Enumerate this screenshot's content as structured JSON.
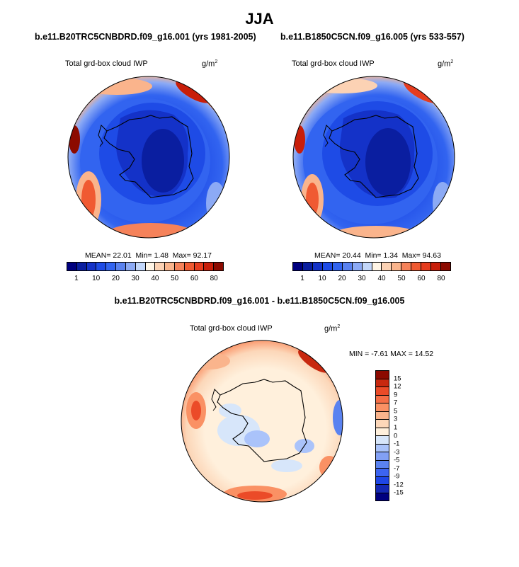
{
  "title": "JJA",
  "panels": [
    {
      "case": "b.e11.B20TRC5CNBDRD.f09_g16.001 (yrs 1981-2005)",
      "variable": "Total grd-box cloud IWP",
      "units_base": "g/m",
      "units_exp": "2",
      "stats": {
        "mean_label": "MEAN=",
        "mean": "22.01",
        "min_label": "Min=",
        "min": "1.48",
        "max_label": "Max=",
        "max": "92.17"
      }
    },
    {
      "case": "b.e11.B1850C5CN.f09_g16.005 (yrs 533-557)",
      "variable": "Total grd-box cloud IWP",
      "units_base": "g/m",
      "units_exp": "2",
      "stats": {
        "mean_label": "MEAN=",
        "mean": "20.44",
        "min_label": "Min=",
        "min": "1.34",
        "max_label": "Max=",
        "max": "94.63"
      }
    }
  ],
  "diff": {
    "case": "b.e11.B20TRC5CNBDRD.f09_g16.001 - b.e11.B1850C5CN.f09_g16.005",
    "variable": "Total grd-box cloud IWP",
    "units_base": "g/m",
    "units_exp": "2",
    "minmax": "MIN = -7.61 MAX = 14.52"
  },
  "abs_colorbar": {
    "colors": [
      "#00007f",
      "#0a1ea0",
      "#1432c8",
      "#1e4be6",
      "#3264f0",
      "#5a82f0",
      "#8caaf5",
      "#c3d7fa",
      "#fff5e6",
      "#fcd2b4",
      "#fab48c",
      "#f5825a",
      "#f05a32",
      "#e63c1e",
      "#c81e0a",
      "#8c0a00"
    ],
    "labels": [
      "1",
      "10",
      "20",
      "30",
      "40",
      "50",
      "60",
      "80"
    ]
  },
  "diff_colorbar": {
    "colors": [
      "#00007f",
      "#1428b4",
      "#1e46e6",
      "#3c64f0",
      "#5a82f0",
      "#82a0f5",
      "#aac3fa",
      "#d7e6fa",
      "#fff0dc",
      "#fcd7b9",
      "#fab48c",
      "#fa9164",
      "#f56e46",
      "#eb4b28",
      "#c8280f",
      "#8c0a00"
    ],
    "labels": [
      "15",
      "12",
      "9",
      "7",
      "5",
      "3",
      "1",
      "0",
      "-1",
      "-3",
      "-5",
      "-7",
      "-9",
      "-12",
      "-15"
    ]
  }
}
